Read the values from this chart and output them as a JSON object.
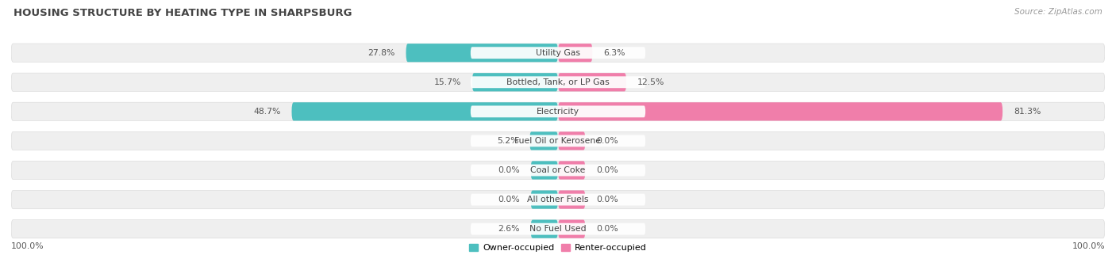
{
  "title": "HOUSING STRUCTURE BY HEATING TYPE IN SHARPSBURG",
  "source": "Source: ZipAtlas.com",
  "categories": [
    "Utility Gas",
    "Bottled, Tank, or LP Gas",
    "Electricity",
    "Fuel Oil or Kerosene",
    "Coal or Coke",
    "All other Fuels",
    "No Fuel Used"
  ],
  "owner_values": [
    27.8,
    15.7,
    48.7,
    5.2,
    0.0,
    0.0,
    2.6
  ],
  "renter_values": [
    6.3,
    12.5,
    81.3,
    0.0,
    0.0,
    0.0,
    0.0
  ],
  "owner_color": "#4DBFBF",
  "renter_color": "#F07EAA",
  "row_bg_color": "#EFEFEF",
  "row_border_color": "#DDDDDD",
  "title_color": "#444444",
  "value_color": "#555555",
  "label_color": "#444444",
  "axis_label_left": "100.0%",
  "axis_label_right": "100.0%",
  "legend_owner": "Owner-occupied",
  "legend_renter": "Renter-occupied",
  "max_val": 100.0,
  "min_bar_width": 5.0
}
